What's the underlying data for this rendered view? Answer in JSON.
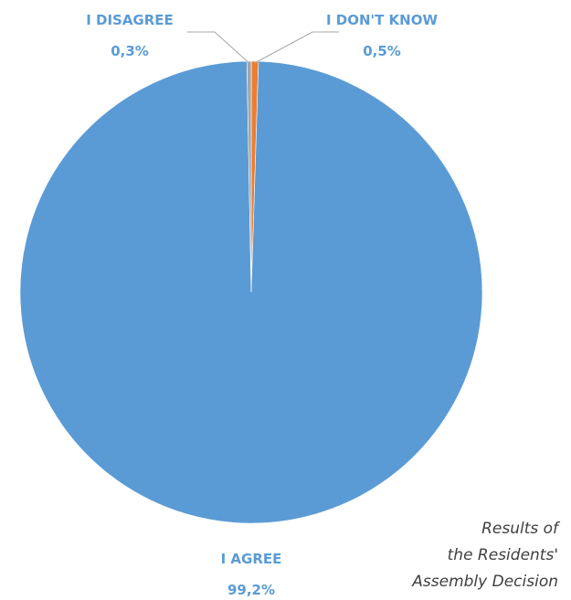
{
  "chart_data": {
    "type": "pie",
    "title": "",
    "start_angle_deg": 0,
    "direction": "clockwise",
    "slices": [
      {
        "label": "I DON'T KNOW",
        "value": 0.5,
        "value_text": "0,5%",
        "color": "#ED7D31"
      },
      {
        "label": "I AGREE",
        "value": 99.2,
        "value_text": "99,2%",
        "color": "#5B9BD5"
      },
      {
        "label": "I DISAGREE",
        "value": 0.3,
        "value_text": "0,3%",
        "color": "#A5A5A5"
      }
    ],
    "label_color": "#5B9BD5",
    "leader_line_color": "#A6A6A6"
  },
  "caption": {
    "lines": [
      "Results of",
      "the Residents'",
      "Assembly Decision"
    ]
  }
}
